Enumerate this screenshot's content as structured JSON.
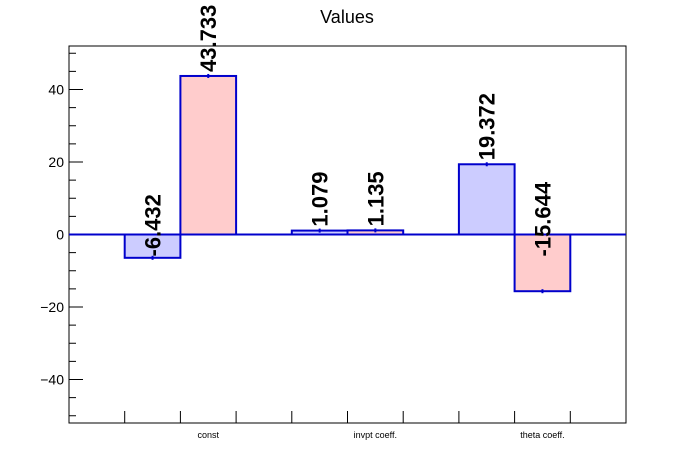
{
  "chart_data": {
    "type": "bar",
    "title": "Values",
    "xlabel": "",
    "ylabel": "",
    "categories": [
      "const",
      "invpt coeff.",
      "theta coeff."
    ],
    "series": [
      {
        "values": [
          -6.432,
          1.079,
          19.372
        ],
        "labels": [
          "-6.432",
          "1.079",
          "19.372"
        ],
        "fill": "#ccccff"
      },
      {
        "values": [
          43.733,
          1.135,
          -15.644
        ],
        "labels": [
          "43.733",
          "1.135",
          "-15.644"
        ],
        "fill": "#ffcccc"
      }
    ],
    "ylim": [
      -52,
      52
    ],
    "yticks": [
      -40,
      -20,
      0,
      20,
      40
    ],
    "ytick_labels": [
      "−40",
      "−20",
      "0",
      "20",
      "40"
    ],
    "grid": false,
    "legend": "none",
    "colors": {
      "bar_edge": "#0000cc",
      "zero_line": "#0000cc",
      "axis": "#000000"
    }
  }
}
